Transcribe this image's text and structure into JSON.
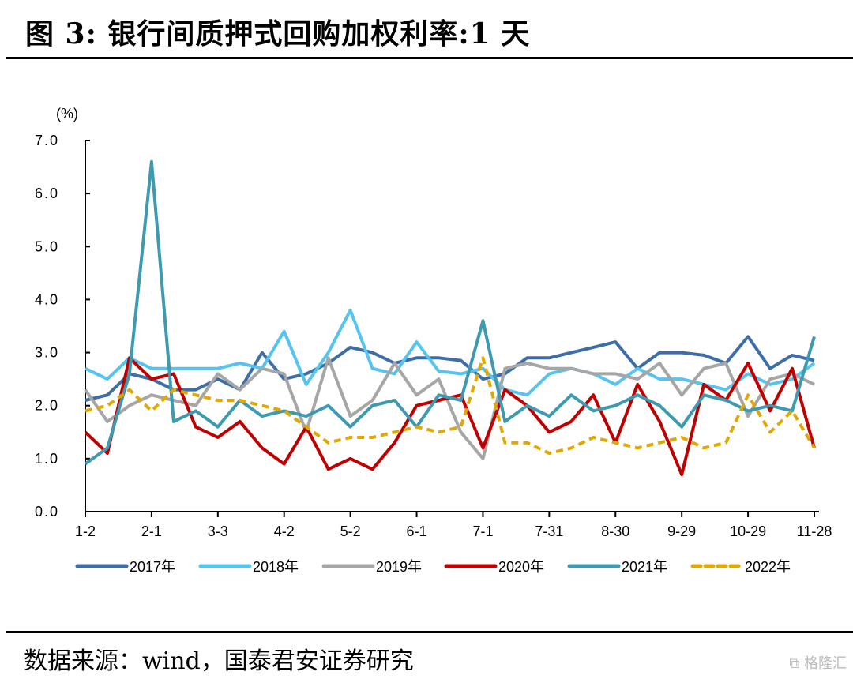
{
  "title": "图  3:  银行间质押式回购加权利率:1 天",
  "source": "数据来源：wind，国泰君安证券研究",
  "watermark": "格隆汇",
  "chart_data": {
    "type": "line",
    "title": "银行间质押式回购加权利率:1 天",
    "ylabel": "(%)",
    "xlabel": "",
    "ylim": [
      0,
      7
    ],
    "y_ticks": [
      "0.0",
      "1.0",
      "2.0",
      "3.0",
      "4.0",
      "5.0",
      "6.0",
      "7.0"
    ],
    "x_ticks": [
      "1-2",
      "2-1",
      "3-3",
      "4-2",
      "5-2",
      "6-1",
      "7-1",
      "7-31",
      "8-30",
      "9-29",
      "10-29",
      "11-28"
    ],
    "grid": false,
    "legend": "bottom",
    "x": [
      "01-02",
      "01-12",
      "01-22",
      "02-01",
      "02-11",
      "02-21",
      "03-03",
      "03-13",
      "03-23",
      "04-02",
      "04-12",
      "04-22",
      "05-02",
      "05-12",
      "05-22",
      "06-01",
      "06-11",
      "06-21",
      "07-01",
      "07-11",
      "07-21",
      "07-31",
      "08-10",
      "08-20",
      "08-30",
      "09-09",
      "09-19",
      "09-29",
      "10-09",
      "10-19",
      "10-29",
      "11-08",
      "11-18",
      "11-28"
    ],
    "series": [
      {
        "name": "2017年",
        "color": "#3e6ea8",
        "dashed": false,
        "values": [
          2.1,
          2.2,
          2.6,
          2.5,
          2.3,
          2.3,
          2.5,
          2.3,
          3.0,
          2.5,
          2.6,
          2.8,
          3.1,
          3.0,
          2.8,
          2.9,
          2.9,
          2.85,
          2.5,
          2.6,
          2.9,
          2.9,
          3.0,
          3.1,
          3.2,
          2.7,
          3.0,
          3.0,
          2.95,
          2.8,
          3.3,
          2.7,
          2.95,
          2.85
        ]
      },
      {
        "name": "2018年",
        "color": "#56c4f0",
        "dashed": false,
        "values": [
          2.7,
          2.5,
          2.9,
          2.7,
          2.7,
          2.7,
          2.7,
          2.8,
          2.7,
          3.4,
          2.4,
          3.0,
          3.8,
          2.7,
          2.6,
          3.2,
          2.65,
          2.6,
          2.7,
          2.3,
          2.2,
          2.6,
          2.7,
          2.6,
          2.4,
          2.7,
          2.5,
          2.5,
          2.4,
          2.3,
          2.6,
          2.4,
          2.5,
          2.8
        ]
      },
      {
        "name": "2019年",
        "color": "#a6a6a6",
        "dashed": false,
        "values": [
          2.3,
          1.7,
          2.0,
          2.2,
          2.1,
          2.0,
          2.6,
          2.3,
          2.7,
          2.6,
          1.5,
          2.9,
          1.8,
          2.1,
          2.8,
          2.2,
          2.5,
          1.5,
          1.0,
          2.7,
          2.8,
          2.7,
          2.7,
          2.6,
          2.6,
          2.5,
          2.8,
          2.2,
          2.7,
          2.8,
          1.8,
          2.5,
          2.6,
          2.4
        ]
      },
      {
        "name": "2020年",
        "color": "#c00000",
        "dashed": false,
        "values": [
          1.5,
          1.1,
          2.9,
          2.5,
          2.6,
          1.6,
          1.4,
          1.7,
          1.2,
          0.9,
          1.6,
          0.8,
          1.0,
          0.8,
          1.3,
          2.0,
          2.1,
          2.2,
          1.2,
          2.3,
          2.0,
          1.5,
          1.7,
          2.2,
          1.3,
          2.4,
          1.7,
          0.7,
          2.4,
          2.1,
          2.8,
          1.9,
          2.7,
          1.2
        ]
      },
      {
        "name": "2021年",
        "color": "#3d9ab0",
        "dashed": false,
        "values": [
          0.9,
          1.2,
          2.6,
          6.6,
          1.7,
          1.9,
          1.6,
          2.1,
          1.8,
          1.9,
          1.8,
          2.0,
          1.6,
          2.0,
          2.1,
          1.6,
          2.2,
          2.1,
          3.6,
          1.7,
          2.0,
          1.8,
          2.2,
          1.9,
          2.0,
          2.2,
          2.0,
          1.6,
          2.2,
          2.1,
          1.9,
          2.0,
          1.9,
          3.3
        ]
      },
      {
        "name": "2022年",
        "color": "#e0a800",
        "dashed": true,
        "values": [
          1.9,
          2.0,
          2.3,
          1.9,
          2.3,
          2.2,
          2.1,
          2.1,
          2.0,
          1.9,
          1.6,
          1.3,
          1.4,
          1.4,
          1.5,
          1.6,
          1.5,
          1.6,
          2.9,
          1.3,
          1.3,
          1.1,
          1.2,
          1.4,
          1.3,
          1.2,
          1.3,
          1.4,
          1.2,
          1.3,
          2.2,
          1.5,
          1.9,
          1.2
        ]
      }
    ]
  }
}
